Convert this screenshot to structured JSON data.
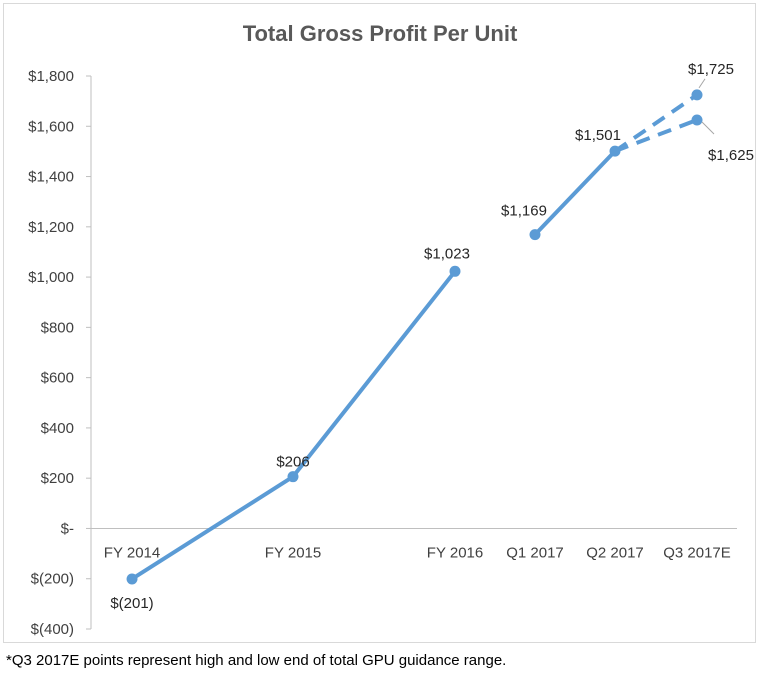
{
  "footnote": "*Q3 2017E points represent high and low end of total GPU guidance range.",
  "chart_data": {
    "type": "line",
    "title": "Total Gross Profit Per Unit",
    "xlabel": "",
    "ylabel": "",
    "categories": [
      "FY 2014",
      "FY 2015",
      "FY 2016",
      "Q1 2017",
      "Q2 2017",
      "Q3 2017E"
    ],
    "y_tick_labels": [
      "$(400)",
      "$(200)",
      "$-",
      "$200",
      "$400",
      "$600",
      "$800",
      "$1,000",
      "$1,200",
      "$1,400",
      "$1,600",
      "$1,800"
    ],
    "y_ticks": [
      -400,
      -200,
      0,
      200,
      400,
      600,
      800,
      1000,
      1200,
      1400,
      1600,
      1800
    ],
    "ylim": [
      -400,
      1800
    ],
    "grid": false,
    "legend": "none",
    "series": [
      {
        "values": [
          -201,
          206,
          1023,
          null,
          null,
          null
        ],
        "style": "solid"
      },
      {
        "values": [
          null,
          null,
          null,
          1169,
          1501,
          null
        ],
        "style": "solid"
      },
      {
        "values": [
          null,
          null,
          null,
          null,
          1501,
          1725
        ],
        "style": "dashed"
      },
      {
        "values": [
          null,
          null,
          null,
          null,
          1501,
          1625
        ],
        "style": "dashed"
      }
    ],
    "points": [
      {
        "category": "FY 2014",
        "value": -201,
        "label": "$(201)"
      },
      {
        "category": "FY 2015",
        "value": 206,
        "label": "$206"
      },
      {
        "category": "FY 2016",
        "value": 1023,
        "label": "$1,023"
      },
      {
        "category": "Q1 2017",
        "value": 1169,
        "label": "$1,169"
      },
      {
        "category": "Q2 2017",
        "value": 1501,
        "label": "$1,501"
      },
      {
        "category": "Q3 2017E",
        "value": 1725,
        "label": "$1,725"
      },
      {
        "category": "Q3 2017E",
        "value": 1625,
        "label": "$1,625"
      }
    ],
    "colors": {
      "series": "#5b9bd5",
      "axis": "#bfbfbf",
      "text": "#404040",
      "title": "#595959"
    }
  }
}
